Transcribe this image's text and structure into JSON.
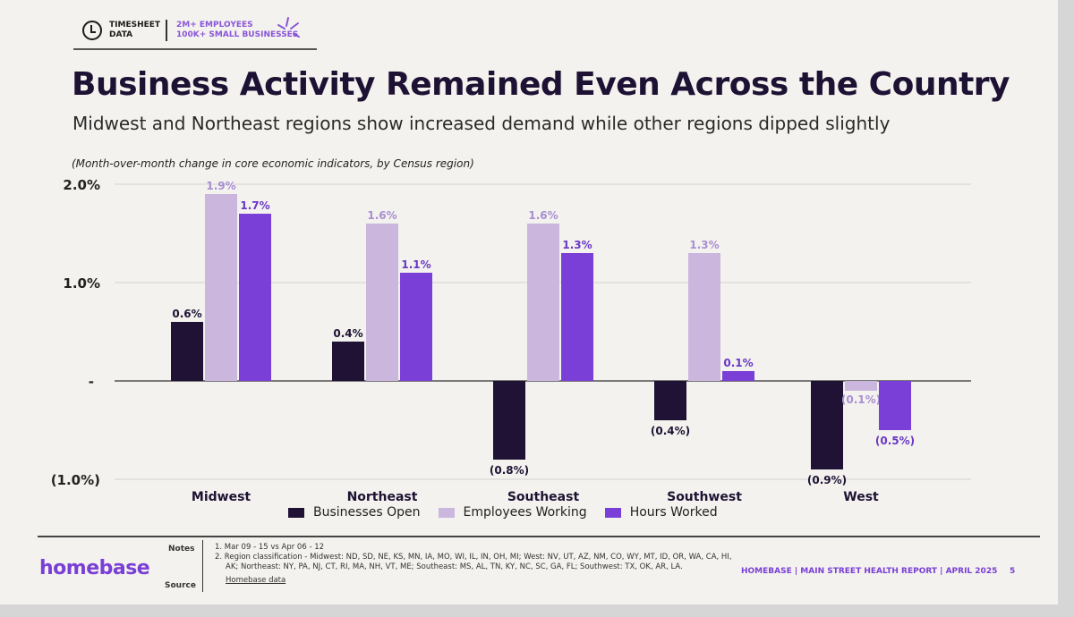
{
  "header": {
    "badge_line1": "TIMESHEET",
    "badge_line2": "DATA",
    "stats_line1": "2M+ EMPLOYEES",
    "stats_line2": "100K+ SMALL BUSINESSES"
  },
  "title": "Business Activity Remained Even Across the Country",
  "subtitle": "Midwest and Northeast regions show increased demand while other regions dipped slightly",
  "chart_note": "(Month-over-month change in core economic indicators, by Census region)",
  "chart_data": {
    "type": "bar",
    "categories": [
      "Midwest",
      "Northeast",
      "Southeast",
      "Southwest",
      "West"
    ],
    "series": [
      {
        "name": "Businesses Open",
        "values": [
          0.6,
          0.4,
          -0.8,
          -0.4,
          -0.9
        ],
        "labels": [
          "0.6%",
          "0.4%",
          "(0.8%)",
          "(0.4%)",
          "(0.9%)"
        ],
        "color": "#201234",
        "label_color": "#1d1233"
      },
      {
        "name": "Employees Working",
        "values": [
          1.9,
          1.6,
          1.6,
          1.3,
          -0.1
        ],
        "labels": [
          "1.9%",
          "1.6%",
          "1.6%",
          "1.3%",
          "(0.1%)"
        ],
        "color": "#cbb7de",
        "label_color": "#a88fd2"
      },
      {
        "name": "Hours Worked",
        "values": [
          1.7,
          1.1,
          1.3,
          0.1,
          -0.5
        ],
        "labels": [
          "1.7%",
          "1.1%",
          "1.3%",
          "0.1%",
          "(0.5%)"
        ],
        "color": "#7a3fd6",
        "label_color": "#6a38c6"
      }
    ],
    "yticks": [
      2.0,
      1.0,
      0,
      -1.0
    ],
    "ytick_labels": [
      "2.0%",
      "1.0%",
      "-",
      "(1.0%)"
    ],
    "ylim": [
      -1.0,
      2.0
    ],
    "grid": true,
    "legend": "bottom"
  },
  "footer": {
    "logo": "homebase",
    "notes_label": "Notes",
    "source_label": "Source",
    "note1": "1.  Mar 09 - 15 vs Apr 06 - 12",
    "note2": "2.  Region classification - Midwest: ND, SD, NE, KS, MN, IA, MO, WI, IL, IN, OH, MI; West: NV, UT, AZ, NM, CO, WY, MT, ID, OR, WA, CA, HI, AK; Northeast: NY, PA, NJ, CT, RI, MA, NH, VT, ME; Southeast: MS, AL, TN, KY, NC, SC, GA, FL; Southwest: TX, OK, AR, LA.",
    "source": "Homebase data",
    "report": "HOMEBASE  |  MAIN STREET HEALTH REPORT  |  APRIL 2025",
    "page": "5"
  }
}
